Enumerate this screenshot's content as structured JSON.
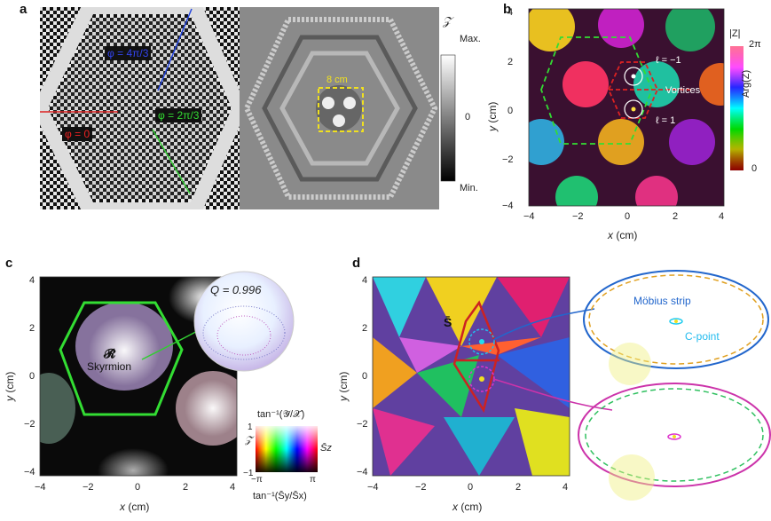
{
  "panels": {
    "a": {
      "label": "a",
      "phase_labels": [
        "φ = 4π/3",
        "φ = 0",
        "φ = 2π/3"
      ],
      "scale_label": "8 cm",
      "colorbar": {
        "symbol": "𝒵",
        "max": "Max.",
        "zero": "0",
        "min": "Min."
      }
    },
    "b": {
      "label": "b",
      "colorbar": {
        "top": "|Z|",
        "mid": "Arg(Z)",
        "hi": "2π",
        "lo": "0"
      },
      "annotations": {
        "l_minus": "ℓ = −1",
        "l_plus": "ℓ = 1",
        "vortices": "Vortices"
      },
      "x_ticks": [
        "−4",
        "−2",
        "0",
        "2",
        "4"
      ],
      "y_ticks": [
        "4",
        "2",
        "0",
        "−2",
        "−4"
      ],
      "xlabel_var": "x",
      "xlabel_unit": " (cm)",
      "ylabel_var": "y",
      "ylabel_unit": " (cm)"
    },
    "c": {
      "label": "c",
      "sphere_label": "Q = 0.996",
      "skyrmion_symbol": "𝓡̄",
      "skyrmion_text": "Skyrmion",
      "x_ticks": [
        "−4",
        "−2",
        "0",
        "2",
        "4"
      ],
      "y_ticks": [
        "4",
        "2",
        "0",
        "−2",
        "−4"
      ],
      "xlabel_var": "x",
      "xlabel_unit": " (cm)",
      "ylabel_var": "y",
      "ylabel_unit": " (cm)",
      "legend": {
        "top": "tan⁻¹(𝒴̄/𝒳̄)",
        "left_top": "𝒵̄",
        "left_one": "1",
        "left_minus_one": "−1",
        "right": "S̄z",
        "bottom_left": "−π",
        "bottom_right": "π",
        "bottom_label": "tan⁻¹(S̄y/S̄x)"
      }
    },
    "d": {
      "label": "d",
      "s_label": "S̄",
      "mobius": "Möbius strip",
      "cpoint": "C-point",
      "x_ticks": [
        "−4",
        "−2",
        "0",
        "2",
        "4"
      ],
      "y_ticks": [
        "4",
        "2",
        "0",
        "−2",
        "−4"
      ],
      "xlabel_var": "x",
      "xlabel_unit": " (cm)",
      "ylabel_var": "y",
      "ylabel_unit": " (cm)"
    }
  },
  "colors": {
    "green_hex": "#33dd33",
    "red_hex": "#dd2222",
    "blue_arrow": "#2244dd",
    "yellow_box": "#f0e020",
    "cyan": "#22bbee",
    "magenta": "#dd33cc"
  }
}
